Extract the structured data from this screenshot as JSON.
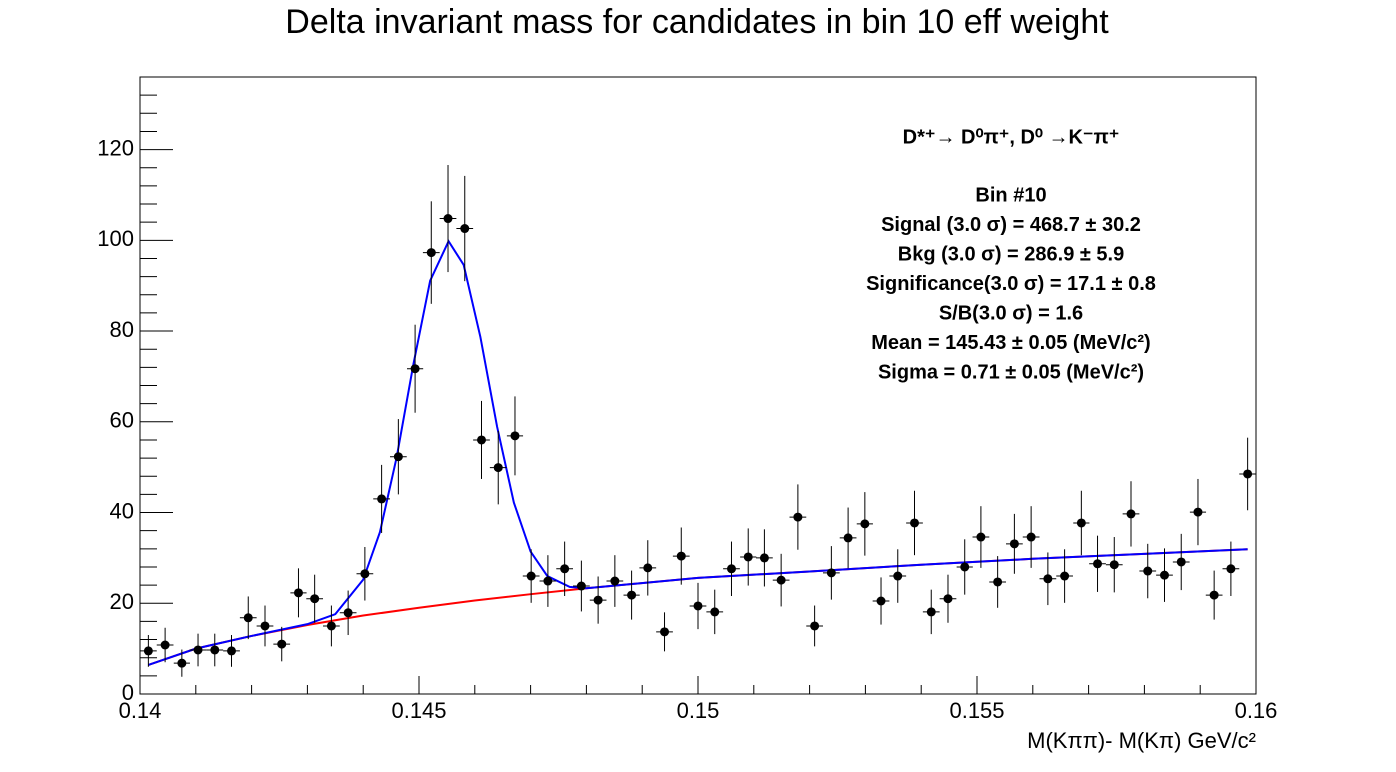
{
  "chart_data": {
    "type": "errorbar",
    "title": "Delta invariant mass for candidates in bin 10 eff weight",
    "xlabel": "M(Kππ)- M(Kπ) GeV/c²",
    "xlim": [
      0.14,
      0.16
    ],
    "ylim": [
      0,
      136
    ],
    "xticks": [
      0.14,
      0.145,
      0.15,
      0.155,
      0.16
    ],
    "yticks": [
      0,
      20,
      40,
      60,
      80,
      100,
      120
    ],
    "xminorticks": [
      0.141,
      0.142,
      0.143,
      0.144,
      0.146,
      0.147,
      0.148,
      0.149,
      0.151,
      0.152,
      0.153,
      0.154,
      0.156,
      0.157,
      0.158,
      0.159
    ],
    "yminorticks": [
      4,
      8,
      12,
      16,
      24,
      28,
      32,
      36,
      44,
      48,
      52,
      56,
      64,
      68,
      72,
      76,
      84,
      88,
      92,
      96,
      104,
      108,
      112,
      116,
      124,
      128,
      132
    ],
    "color": "#000000",
    "x": [
      0.14015,
      0.14045,
      0.14075,
      0.14104,
      0.14134,
      0.14164,
      0.14194,
      0.14224,
      0.14254,
      0.14284,
      0.14313,
      0.14343,
      0.14373,
      0.14403,
      0.14433,
      0.14463,
      0.14493,
      0.14522,
      0.14552,
      0.14582,
      0.14612,
      0.14642,
      0.14672,
      0.14701,
      0.14731,
      0.14761,
      0.14791,
      0.14821,
      0.14851,
      0.14881,
      0.1491,
      0.1494,
      0.1497,
      0.15,
      0.1503,
      0.1506,
      0.1509,
      0.15119,
      0.15149,
      0.15179,
      0.15209,
      0.15239,
      0.15269,
      0.15299,
      0.15328,
      0.15358,
      0.15388,
      0.15418,
      0.15448,
      0.15478,
      0.15507,
      0.15537,
      0.15567,
      0.15597,
      0.15627,
      0.15657,
      0.15687,
      0.15716,
      0.15746,
      0.15776,
      0.15806,
      0.15836,
      0.15866,
      0.15896,
      0.15925,
      0.15955,
      0.15985
    ],
    "values": [
      9.5,
      10.8,
      6.8,
      9.7,
      9.7,
      9.5,
      16.8,
      15.0,
      11.0,
      22.3,
      21.0,
      15.0,
      17.9,
      26.5,
      43.0,
      52.3,
      71.7,
      97.3,
      104.8,
      102.6,
      56.0,
      49.9,
      56.9,
      26.0,
      24.9,
      27.6,
      23.8,
      20.7,
      24.9,
      21.8,
      27.8,
      13.7,
      30.4,
      19.4,
      18.1,
      27.6,
      30.2,
      30.0,
      25.1,
      39.0,
      15.0,
      26.7,
      34.4,
      37.5,
      20.5,
      26.0,
      37.7,
      18.1,
      21.0,
      28.0,
      34.6,
      24.7,
      33.1,
      34.6,
      25.4,
      26.0,
      37.7,
      28.7,
      28.5,
      39.7,
      27.1,
      26.2,
      29.1,
      40.1,
      21.8,
      27.6,
      48.5
    ],
    "errors": [
      3.5,
      3.8,
      3.0,
      3.6,
      3.6,
      3.5,
      4.7,
      4.5,
      3.8,
      5.4,
      5.3,
      4.5,
      4.9,
      5.9,
      7.5,
      8.3,
      9.7,
      11.3,
      11.8,
      11.6,
      8.6,
      8.1,
      8.7,
      5.9,
      5.7,
      6.0,
      5.6,
      5.2,
      5.7,
      5.4,
      6.1,
      4.3,
      6.3,
      5.1,
      4.9,
      6.0,
      6.3,
      6.3,
      5.8,
      7.2,
      4.5,
      5.9,
      6.7,
      7.0,
      5.2,
      5.9,
      7.1,
      4.9,
      5.3,
      6.1,
      6.8,
      5.7,
      6.6,
      6.8,
      5.8,
      5.9,
      7.1,
      6.2,
      6.1,
      7.2,
      6.0,
      5.9,
      6.2,
      7.3,
      5.4,
      6.0,
      8.0
    ],
    "fits": [
      {
        "color": "#ff0000",
        "x": [
          0.14015,
          0.141,
          0.142,
          0.143,
          0.144,
          0.145,
          0.146,
          0.147,
          0.148,
          0.15,
          0.152,
          0.154,
          0.156,
          0.158,
          0.15985
        ],
        "values": [
          6.4,
          10.0,
          12.8,
          15.2,
          17.3,
          19.0,
          20.6,
          22.0,
          23.3,
          25.6,
          27.0,
          28.5,
          29.8,
          30.9,
          31.9
        ]
      },
      {
        "color": "#0000ff",
        "x": [
          0.14015,
          0.141,
          0.142,
          0.143,
          0.1435,
          0.144,
          0.1443,
          0.1446,
          0.1449,
          0.1452,
          0.14553,
          0.1458,
          0.1461,
          0.1464,
          0.1467,
          0.147,
          0.1473,
          0.1477,
          0.148,
          0.15,
          0.152,
          0.154,
          0.156,
          0.158,
          0.15985
        ],
        "values": [
          6.4,
          10.0,
          12.8,
          15.4,
          17.6,
          25.2,
          35.7,
          52.2,
          72.7,
          91.1,
          99.8,
          94.6,
          78.7,
          58.9,
          42.2,
          31.4,
          26.0,
          23.6,
          23.3,
          25.6,
          27.0,
          28.5,
          29.8,
          30.9,
          31.9
        ]
      }
    ],
    "annotations": [
      "D*⁺→ D⁰π⁺, D⁰  →K⁻π⁺",
      "Bin #10",
      "Signal (3.0 σ) =  468.7 ± 30.2",
      "Bkg (3.0 σ) =  286.9 ± 5.9",
      "Significance(3.0 σ) =  17.1 ± 0.8",
      "S/B(3.0 σ) =  1.6",
      "Mean = 145.43 ± 0.05 (MeV/c²)",
      "Sigma = 0.71 ± 0.05 (MeV/c²)"
    ]
  }
}
